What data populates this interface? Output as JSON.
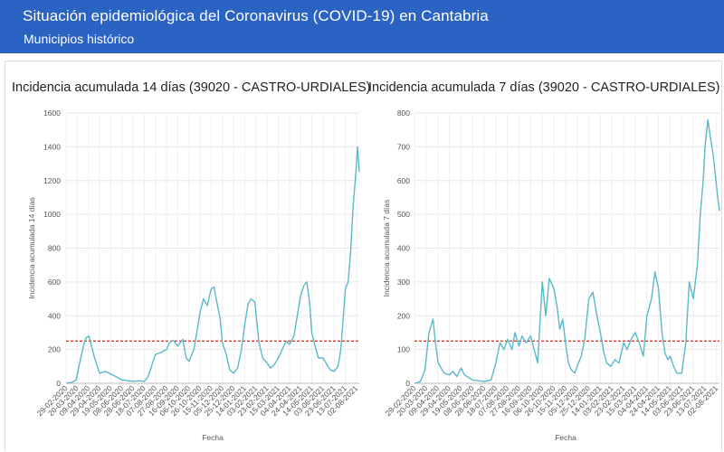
{
  "header": {
    "title": "Situación epidemiológica del Coronavirus (COVID-19) en Cantabria",
    "subtitle": "Municipios histórico"
  },
  "chart_data": [
    {
      "type": "line",
      "title": "Incidencia acumulada 14 días (39020 - CASTRO-URDIALES)",
      "xlabel": "Fecha",
      "ylabel": "Incidencia acumulada 14 días",
      "ylim": [
        0,
        1600
      ],
      "yticks": [
        0,
        200,
        400,
        600,
        800,
        1000,
        1200,
        1400,
        1600
      ],
      "xticks": [
        "29-02-2020",
        "20-03-2020",
        "09-04-2020",
        "29-04-2020",
        "19-05-2020",
        "08-06-2020",
        "28-06-2020",
        "18-07-2020",
        "07-08-2020",
        "27-08-2020",
        "16-09-2020",
        "06-10-2020",
        "26-10-2020",
        "15-11-2020",
        "05-12-2020",
        "25-12-2020",
        "14-01-2021",
        "03-02-2021",
        "23-02-2021",
        "15-03-2021",
        "04-04-2021",
        "24-04-2021",
        "14-05-2021",
        "03-06-2021",
        "23-06-2021",
        "13-07-2021",
        "02-08-2021"
      ],
      "threshold": 250,
      "grid": true,
      "color": "#5bb8c9",
      "threshold_color": "#d9261c",
      "series": [
        {
          "x": [
            "2020-03-01",
            "2020-03-10",
            "2020-03-18",
            "2020-03-25",
            "2020-04-01",
            "2020-04-05",
            "2020-04-10",
            "2020-04-20",
            "2020-04-29",
            "2020-05-10",
            "2020-05-19",
            "2020-05-25",
            "2020-06-08",
            "2020-06-28",
            "2020-07-10",
            "2020-07-18",
            "2020-07-25",
            "2020-08-01",
            "2020-08-07",
            "2020-08-15",
            "2020-08-27",
            "2020-09-01",
            "2020-09-08",
            "2020-09-16",
            "2020-09-25",
            "2020-10-01",
            "2020-10-06",
            "2020-10-15",
            "2020-10-20",
            "2020-10-26",
            "2020-11-01",
            "2020-11-08",
            "2020-11-12",
            "2020-11-15",
            "2020-11-20",
            "2020-11-25",
            "2020-12-01",
            "2020-12-05",
            "2020-12-12",
            "2020-12-18",
            "2020-12-25",
            "2021-01-01",
            "2021-01-08",
            "2021-01-14",
            "2021-01-20",
            "2021-01-25",
            "2021-02-01",
            "2021-02-08",
            "2021-02-15",
            "2021-02-23",
            "2021-03-01",
            "2021-03-08",
            "2021-03-15",
            "2021-03-22",
            "2021-03-29",
            "2021-04-04",
            "2021-04-12",
            "2021-04-18",
            "2021-04-24",
            "2021-04-30",
            "2021-05-05",
            "2021-05-10",
            "2021-05-14",
            "2021-05-20",
            "2021-05-26",
            "2021-06-03",
            "2021-06-10",
            "2021-06-16",
            "2021-06-23",
            "2021-06-30",
            "2021-07-05",
            "2021-07-10",
            "2021-07-13",
            "2021-07-18",
            "2021-07-23",
            "2021-07-27",
            "2021-08-01",
            "2021-08-04",
            "2021-08-07"
          ],
          "values": [
            0,
            5,
            20,
            130,
            230,
            270,
            280,
            150,
            60,
            70,
            55,
            45,
            20,
            12,
            15,
            10,
            40,
            110,
            170,
            180,
            200,
            240,
            255,
            220,
            260,
            150,
            130,
            200,
            300,
            420,
            500,
            460,
            520,
            560,
            570,
            480,
            380,
            240,
            170,
            80,
            60,
            90,
            200,
            350,
            470,
            500,
            480,
            250,
            150,
            120,
            90,
            110,
            150,
            200,
            250,
            230,
            280,
            400,
            520,
            580,
            600,
            480,
            300,
            220,
            150,
            150,
            110,
            80,
            70,
            100,
            200,
            420,
            560,
            600,
            800,
            1050,
            1250,
            1400,
            1250
          ]
        }
      ]
    },
    {
      "type": "line",
      "title": "Incidencia acumulada 7 días (39020 - CASTRO-URDIALES)",
      "xlabel": "Fecha",
      "ylabel": "Incidencia acumulada 7 días",
      "ylim": [
        0,
        800
      ],
      "yticks": [
        0,
        100,
        200,
        300,
        400,
        500,
        600,
        700,
        800
      ],
      "xticks": [
        "29-02-2020",
        "20-03-2020",
        "09-04-2020",
        "29-04-2020",
        "19-05-2020",
        "08-06-2020",
        "28-06-2020",
        "18-07-2020",
        "07-08-2020",
        "27-08-2020",
        "16-09-2020",
        "06-10-2020",
        "26-10-2020",
        "15-11-2020",
        "05-12-2020",
        "25-12-2020",
        "14-01-2021",
        "03-02-2021",
        "23-02-2021",
        "15-03-2021",
        "04-04-2021",
        "24-04-2021",
        "14-05-2021",
        "03-06-2021",
        "23-06-2021",
        "13-07-2021",
        "02-08-2021"
      ],
      "threshold": 125,
      "grid": true,
      "color": "#5bb8c9",
      "threshold_color": "#d9261c",
      "series": [
        {
          "x": [
            "2020-03-01",
            "2020-03-10",
            "2020-03-18",
            "2020-03-25",
            "2020-04-01",
            "2020-04-05",
            "2020-04-10",
            "2020-04-20",
            "2020-04-29",
            "2020-05-05",
            "2020-05-12",
            "2020-05-19",
            "2020-05-25",
            "2020-06-08",
            "2020-06-28",
            "2020-07-10",
            "2020-07-18",
            "2020-07-25",
            "2020-08-01",
            "2020-08-07",
            "2020-08-15",
            "2020-08-20",
            "2020-08-27",
            "2020-09-01",
            "2020-09-08",
            "2020-09-16",
            "2020-09-22",
            "2020-09-28",
            "2020-10-06",
            "2020-10-12",
            "2020-10-18",
            "2020-10-26",
            "2020-11-01",
            "2020-11-05",
            "2020-11-10",
            "2020-11-15",
            "2020-11-20",
            "2020-11-25",
            "2020-12-01",
            "2020-12-05",
            "2020-12-12",
            "2020-12-18",
            "2020-12-25",
            "2021-01-01",
            "2021-01-08",
            "2021-01-14",
            "2021-01-20",
            "2021-01-25",
            "2021-02-01",
            "2021-02-08",
            "2021-02-15",
            "2021-02-23",
            "2021-03-01",
            "2021-03-08",
            "2021-03-15",
            "2021-03-22",
            "2021-03-29",
            "2021-04-04",
            "2021-04-12",
            "2021-04-18",
            "2021-04-24",
            "2021-04-30",
            "2021-05-05",
            "2021-05-10",
            "2021-05-14",
            "2021-05-20",
            "2021-05-26",
            "2021-06-03",
            "2021-06-10",
            "2021-06-16",
            "2021-06-23",
            "2021-06-30",
            "2021-07-05",
            "2021-07-10",
            "2021-07-13",
            "2021-07-18",
            "2021-07-23",
            "2021-07-27",
            "2021-08-01",
            "2021-08-04",
            "2021-08-07"
          ],
          "values": [
            0,
            5,
            40,
            150,
            190,
            120,
            60,
            30,
            25,
            35,
            20,
            45,
            25,
            10,
            5,
            10,
            60,
            120,
            100,
            130,
            100,
            150,
            110,
            140,
            120,
            140,
            100,
            60,
            300,
            200,
            310,
            280,
            220,
            160,
            190,
            120,
            60,
            40,
            30,
            50,
            80,
            130,
            250,
            270,
            200,
            150,
            90,
            60,
            50,
            70,
            60,
            120,
            100,
            130,
            150,
            120,
            80,
            200,
            250,
            330,
            280,
            150,
            90,
            70,
            80,
            50,
            30,
            30,
            120,
            300,
            250,
            350,
            500,
            600,
            700,
            780,
            720,
            680,
            600,
            550,
            510
          ]
        }
      ]
    }
  ]
}
